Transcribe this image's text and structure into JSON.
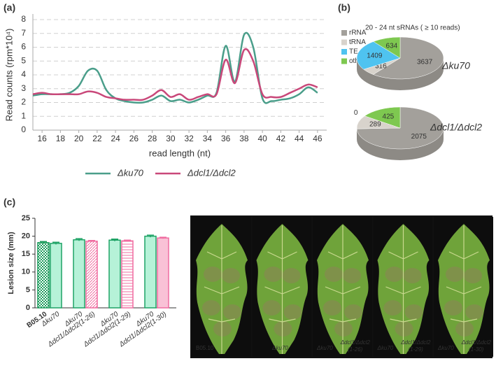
{
  "panel_labels": [
    "(a)",
    "(b)",
    "(c)"
  ],
  "chart_data": [
    {
      "type": "line",
      "ylabel": "Read counts (rpm*10⁴)",
      "xlabel": "read length (nt)",
      "x": [
        15,
        16,
        17,
        18,
        19,
        20,
        21,
        22,
        23,
        24,
        25,
        26,
        27,
        28,
        29,
        30,
        31,
        32,
        33,
        34,
        35,
        36,
        37,
        38,
        39,
        40,
        41,
        42,
        43,
        44,
        45,
        46
      ],
      "series": [
        {
          "name": "Δku70",
          "color": "#4a9e8a",
          "values": [
            2.5,
            2.6,
            2.6,
            2.6,
            2.7,
            3.2,
            4.3,
            4.3,
            2.9,
            2.3,
            2.1,
            2.0,
            2.0,
            2.2,
            2.5,
            2.1,
            2.2,
            2.0,
            2.2,
            2.5,
            2.7,
            6.1,
            3.5,
            6.9,
            6.0,
            2.3,
            2.1,
            2.2,
            2.3,
            2.6,
            3.1,
            2.7
          ]
        },
        {
          "name": "Δdcl1/Δdcl2",
          "color": "#c9487a",
          "values": [
            2.6,
            2.7,
            2.6,
            2.6,
            2.6,
            2.6,
            2.8,
            2.7,
            2.4,
            2.3,
            2.2,
            2.2,
            2.2,
            2.5,
            2.9,
            2.4,
            2.6,
            2.2,
            2.4,
            2.6,
            2.6,
            5.1,
            3.4,
            5.8,
            5.0,
            2.6,
            2.4,
            2.4,
            2.7,
            3.0,
            3.3,
            3.1
          ]
        }
      ],
      "xlim": [
        15,
        47
      ],
      "xticks": [
        16,
        18,
        20,
        22,
        24,
        26,
        28,
        30,
        32,
        34,
        36,
        38,
        40,
        42,
        44,
        46
      ],
      "ylim": [
        0,
        8
      ],
      "yticks": [
        0,
        1,
        2,
        3,
        4,
        5,
        6,
        7,
        8
      ],
      "grid": true,
      "legend": "bottom"
    },
    {
      "type": "pie",
      "title": "20 - 24 nt sRNAs ( ≥ 10 reads)",
      "categories": [
        "rRNA",
        "tRNA",
        "TE",
        "other"
      ],
      "colors": [
        "#a3a09b",
        "#d8d3cc",
        "#4fc3f0",
        "#7ec850"
      ],
      "series": [
        {
          "name": "Δku70",
          "values": [
            3637,
            316,
            1409,
            634
          ]
        },
        {
          "name": "Δdcl1/Δdcl2",
          "values": [
            2075,
            289,
            0,
            425
          ]
        }
      ],
      "legend": "top-left"
    },
    {
      "type": "bar",
      "ylabel": "Lesion size (mm)",
      "categories": [
        "B05.10",
        "Δku70",
        "Δku70",
        "Δdcl1/Δdcl2(1-26)",
        "Δku70",
        "Δdcl1/Δdcl2(1-29)",
        "Δku70",
        "Δdcl1/Δdcl2(1-30)"
      ],
      "values": [
        18.2,
        18.0,
        19.0,
        18.6,
        18.9,
        18.7,
        20.0,
        19.5
      ],
      "errors": [
        0.3,
        0.3,
        0.3,
        0.2,
        0.3,
        0.2,
        0.3,
        0.2
      ],
      "colors": [
        "#1c9c5c",
        "#1fa366",
        "#1fa366",
        "#f06ca0",
        "#1fa366",
        "#f06ca0",
        "#1fa366",
        "#f06ca0"
      ],
      "fills": [
        "#ffffff",
        "#b6f2d8",
        "#b6f2d8",
        "#ffffff",
        "#b6f2d8",
        "#ffffff",
        "#b6f2d8",
        "#f9c1d6"
      ],
      "patterns": [
        "checker",
        "none",
        "none",
        "diagonal",
        "none",
        "horizontal",
        "none",
        "none"
      ],
      "ylim": [
        0,
        25
      ],
      "yticks": [
        0,
        5,
        10,
        15,
        20,
        25
      ]
    }
  ],
  "photo_panels": [
    {
      "labels": [
        "B05.10",
        "Δku70"
      ]
    },
    {
      "labels": [
        "Δku70",
        "Δdcl1/Δdcl2",
        "(1-26)"
      ]
    },
    {
      "labels": [
        "Δku70",
        "Δdcl1/Δdcl2",
        "(1-29)"
      ]
    },
    {
      "labels": [
        "Δku70",
        "Δdcl1/Δdcl2",
        "(1-30)"
      ]
    }
  ]
}
